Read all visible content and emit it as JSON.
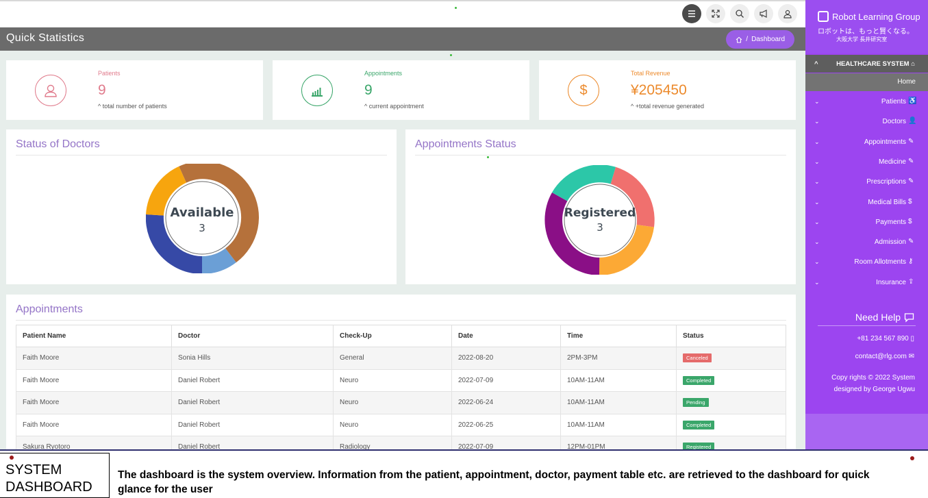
{
  "top_bar": {
    "icons": [
      "menu-icon",
      "fullscreen-icon",
      "search-icon",
      "megaphone-icon",
      "user-icon"
    ]
  },
  "header": {
    "title": "Quick Statistics",
    "breadcrumb": "Dashboard"
  },
  "stats": [
    {
      "label": "Patients",
      "value": "9",
      "note": "total number of patients",
      "color": "#e07b8c",
      "icon": "user-icon"
    },
    {
      "label": "Appointments",
      "value": "9",
      "note": "current appointment",
      "color": "#3aa66a",
      "icon": "bar-chart-icon"
    },
    {
      "label": "Total Revenue",
      "value": "¥205450",
      "note": "+total revenue generated",
      "color": "#ec8a2c",
      "icon": "dollar-icon"
    }
  ],
  "doctors_status": {
    "title": "Status of Doctors",
    "center_label": "Available",
    "center_value": "3"
  },
  "appointments_status": {
    "title": "Appointments Status",
    "center_label": "Registered",
    "center_value": "3"
  },
  "appointments": {
    "title": "Appointments",
    "columns": [
      "Patient Name",
      "Doctor",
      "Check-Up",
      "Date",
      "Time",
      "Status"
    ],
    "rows": [
      {
        "patient": "Faith Moore",
        "doctor": "Sonia Hills",
        "checkup": "General",
        "date": "2022-08-20",
        "time": "2PM-3PM",
        "status": "Canceled",
        "status_color": "#e56b6b"
      },
      {
        "patient": "Faith Moore",
        "doctor": "Daniel Robert",
        "checkup": "Neuro",
        "date": "2022-07-09",
        "time": "10AM-11AM",
        "status": "Completed",
        "status_color": "#3aa66a"
      },
      {
        "patient": "Faith Moore",
        "doctor": "Daniel Robert",
        "checkup": "Neuro",
        "date": "2022-06-24",
        "time": "10AM-11AM",
        "status": "Pending",
        "status_color": "#3aa66a"
      },
      {
        "patient": "Faith Moore",
        "doctor": "Daniel Robert",
        "checkup": "Neuro",
        "date": "2022-06-25",
        "time": "10AM-11AM",
        "status": "Completed",
        "status_color": "#3aa66a"
      },
      {
        "patient": "Sakura Ryotoro",
        "doctor": "Daniel Robert",
        "checkup": "Radiology",
        "date": "2022-07-09",
        "time": "12PM-01PM",
        "status": "Registered",
        "status_color": "#3aa66a"
      }
    ]
  },
  "sidebar": {
    "brand": "Robot Learning Group",
    "tagline": "ロボットは、もっと賢くなる。",
    "lab": "大阪大学 長井研究室",
    "system_label": "HEALTHCARE SYSTEM",
    "home_label": "Home",
    "items": [
      {
        "label": "Patients",
        "icon": "wheelchair-icon"
      },
      {
        "label": "Doctors",
        "icon": "user-icon"
      },
      {
        "label": "Appointments",
        "icon": "edit-icon"
      },
      {
        "label": "Medicine",
        "icon": "edit-icon"
      },
      {
        "label": "Prescriptions",
        "icon": "edit-icon"
      },
      {
        "label": "Medical Bills",
        "icon": "dollar-icon"
      },
      {
        "label": "Payments",
        "icon": "dollar-icon"
      },
      {
        "label": "Admission",
        "icon": "edit-icon"
      },
      {
        "label": "Room Allotments",
        "icon": "key-icon"
      },
      {
        "label": "Insurance",
        "icon": "upload-icon"
      }
    ],
    "help_title": "Need Help",
    "phone": "+81 234 567 890",
    "email": "contact@rlg.com",
    "copyright_line1": "Copy rights © 2022 System",
    "copyright_line2": "designed by George Ugwu",
    "accent": "#9c45f0"
  },
  "caption": {
    "title_line1": "SYSTEM",
    "title_line2": "DASHBOARD",
    "text": "The dashboard is the system overview. Information from the patient, appointment, doctor, payment table etc. are retrieved to the dashboard for quick glance for the user"
  }
}
